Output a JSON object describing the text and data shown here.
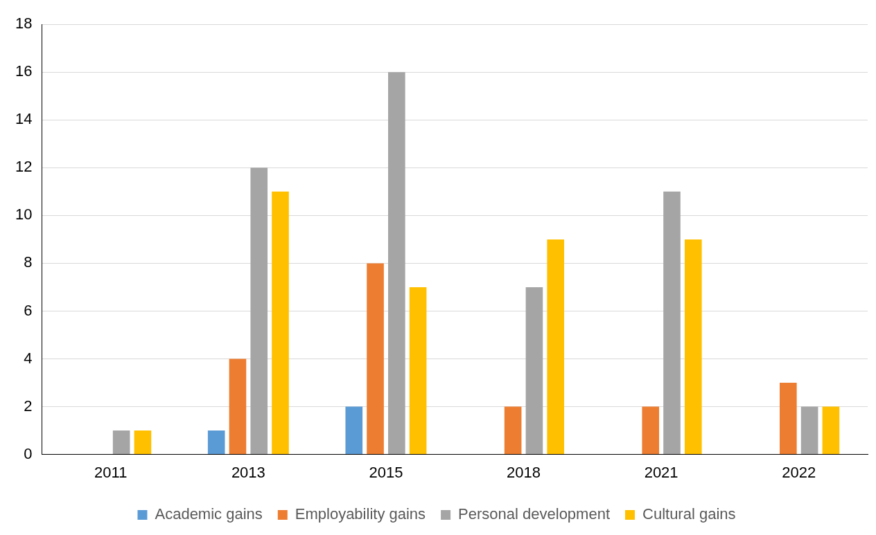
{
  "chart_data": {
    "type": "bar",
    "categories": [
      "2011",
      "2013",
      "2015",
      "2018",
      "2021",
      "2022"
    ],
    "series": [
      {
        "name": "Academic gains",
        "color": "#5b9bd5",
        "values": [
          0,
          1,
          2,
          0,
          0,
          0
        ]
      },
      {
        "name": "Employability gains",
        "color": "#ed7d31",
        "values": [
          0,
          4,
          8,
          2,
          2,
          3
        ]
      },
      {
        "name": "Personal development",
        "color": "#a5a5a5",
        "values": [
          1,
          12,
          16,
          7,
          11,
          2
        ]
      },
      {
        "name": "Cultural gains",
        "color": "#ffc000",
        "values": [
          1,
          11,
          7,
          9,
          9,
          2
        ]
      }
    ],
    "ylim": [
      0,
      18
    ],
    "yticks": [
      0,
      2,
      4,
      6,
      8,
      10,
      12,
      14,
      16,
      18
    ],
    "grid": "y",
    "legend": "bottom"
  }
}
